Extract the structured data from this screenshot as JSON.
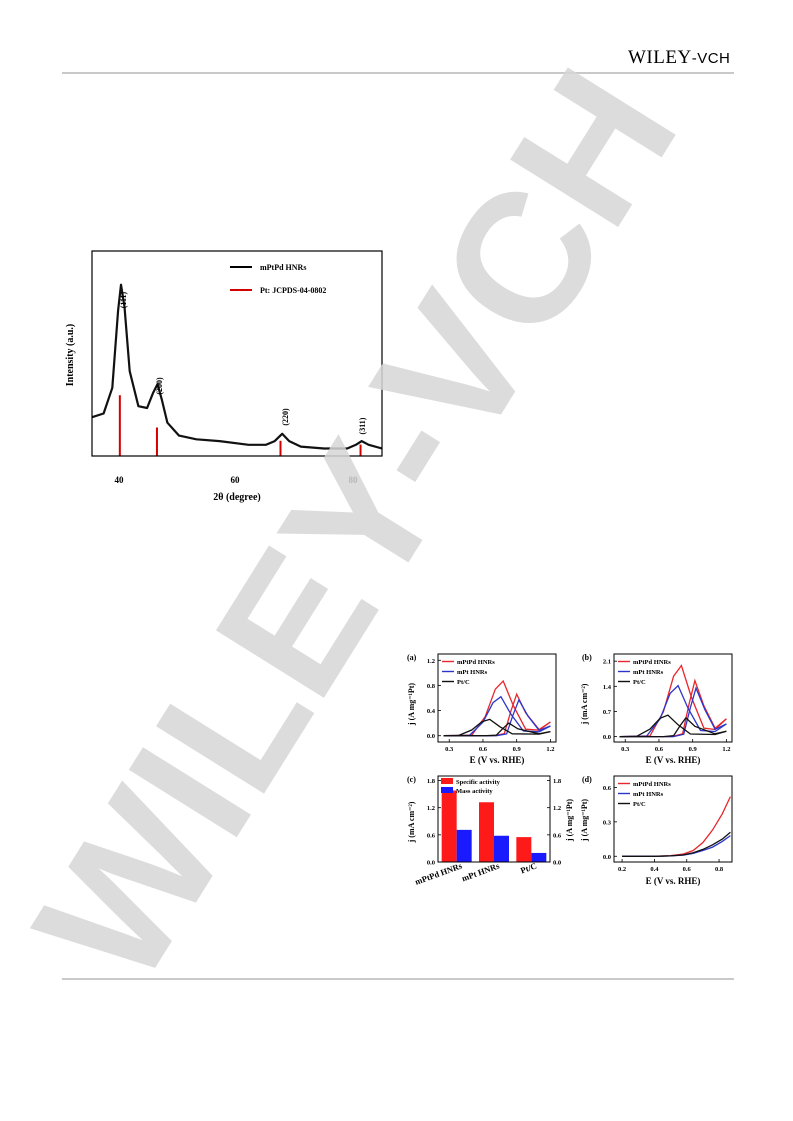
{
  "header": {
    "publisher_main": "WILEY",
    "publisher_suffix": "-VCH"
  },
  "watermark": {
    "text": "WILEY-VCH",
    "color": "#d6d6d6"
  },
  "colors": {
    "mPtPd": "#e8262b",
    "mPt": "#2b36c9",
    "PtC": "#111111",
    "specific": "#ff1a1a",
    "mass": "#1a1aff",
    "reference": "#d40000"
  },
  "xrd": {
    "xlabel": "2θ (degree)",
    "ylabel": "Intensity (a.u.)",
    "xticks": [
      "40",
      "60",
      "80"
    ],
    "legend": [
      "mPtPd HNRs",
      "Pt: JCPDS-04-0802"
    ],
    "peaks": [
      "(111)",
      "(200)",
      "(220)",
      "(311)"
    ]
  },
  "panel_a": {
    "label": "(a)",
    "ylabel": "j (A mg⁻¹Pt)",
    "xlabel": "E (V vs. RHE)",
    "yticks": [
      "0.0",
      "0.4",
      "0.8",
      "1.2"
    ],
    "xticks": [
      "0.3",
      "0.6",
      "0.9",
      "1.2"
    ],
    "legend": [
      "mPtPd HNRs",
      "mPt HNRs",
      "Pt/C"
    ]
  },
  "panel_b": {
    "label": "(b)",
    "ylabel": "j (mA cm⁻²)",
    "xlabel": "E (V vs. RHE)",
    "yticks": [
      "0.0",
      "0.7",
      "1.4",
      "2.1"
    ],
    "xticks": [
      "0.3",
      "0.6",
      "0.9",
      "1.2"
    ],
    "legend": [
      "mPtPd HNRs",
      "mPt HNRs",
      "Pt/C"
    ]
  },
  "panel_c": {
    "label": "(c)",
    "ylabel_left": "j (mA cm⁻²)",
    "ylabel_right": "j (A mg⁻¹Pt)",
    "yticks_left": [
      "0.0",
      "0.6",
      "1.2",
      "1.8"
    ],
    "yticks_right": [
      "0.0",
      "0.6",
      "1.2",
      "1.8"
    ],
    "categories": [
      "mPtPd HNRs",
      "mPt HNRs",
      "Pt/C"
    ],
    "legend": [
      "Specific activity",
      "Mass activity"
    ]
  },
  "panel_d": {
    "label": "(d)",
    "ylabel": "j (A mg⁻¹Pt)",
    "xlabel": "E (V vs. RHE)",
    "yticks": [
      "0.0",
      "0.3",
      "0.6"
    ],
    "xticks": [
      "0.2",
      "0.4",
      "0.6",
      "0.8"
    ],
    "legend": [
      "mPtPd HNRs",
      "mPt HNRs",
      "Pt/C"
    ]
  },
  "chart_data": [
    {
      "type": "line",
      "title": "",
      "xlabel": "2θ (degree)",
      "ylabel": "Intensity (a.u.)",
      "xlim": [
        35,
        85
      ],
      "series": [
        {
          "name": "mPtPd HNRs",
          "x": [
            35,
            37,
            38.5,
            39.5,
            40,
            40.6,
            41.5,
            43,
            44.5,
            45.5,
            46.3,
            47,
            48,
            50,
            53,
            57,
            62,
            65,
            66.5,
            67.8,
            69,
            71,
            75,
            79,
            80.5,
            81.5,
            82.7,
            85
          ],
          "y": [
            0.2,
            0.22,
            0.36,
            0.78,
            0.92,
            0.8,
            0.45,
            0.26,
            0.25,
            0.33,
            0.38,
            0.3,
            0.17,
            0.1,
            0.08,
            0.07,
            0.05,
            0.05,
            0.07,
            0.11,
            0.07,
            0.04,
            0.03,
            0.03,
            0.05,
            0.07,
            0.05,
            0.03
          ]
        },
        {
          "name": "Pt: JCPDS-04-0802",
          "x": [
            39.8,
            46.2,
            67.5,
            81.3
          ],
          "y": [
            0.32,
            0.15,
            0.08,
            0.06
          ]
        }
      ]
    },
    {
      "type": "line",
      "xlabel": "E (V vs. RHE)",
      "ylabel": "j (A mg⁻¹Pt)",
      "xlim": [
        0.2,
        1.25
      ],
      "ylim": [
        -0.1,
        1.3
      ],
      "series": [
        {
          "name": "mPtPd HNRs",
          "forward_peak": [
            0.78,
            0.87
          ],
          "backward_peak": [
            0.9,
            0.66
          ]
        },
        {
          "name": "mPt HNRs",
          "forward_peak": [
            0.76,
            0.62
          ],
          "backward_peak": [
            0.92,
            0.57
          ]
        },
        {
          "name": "Pt/C",
          "forward_peak": [
            0.66,
            0.26
          ],
          "backward_peak": [
            0.83,
            0.2
          ]
        }
      ]
    },
    {
      "type": "line",
      "xlabel": "E (V vs. RHE)",
      "ylabel": "j (mA cm⁻²)",
      "xlim": [
        0.2,
        1.25
      ],
      "ylim": [
        -0.15,
        2.3
      ],
      "series": [
        {
          "name": "mPtPd HNRs",
          "forward_peak": [
            0.8,
            1.98
          ],
          "backward_peak": [
            0.92,
            1.56
          ]
        },
        {
          "name": "mPt HNRs",
          "forward_peak": [
            0.77,
            1.42
          ],
          "backward_peak": [
            0.93,
            1.35
          ]
        },
        {
          "name": "Pt/C",
          "forward_peak": [
            0.68,
            0.6
          ],
          "backward_peak": [
            0.84,
            0.52
          ]
        }
      ]
    },
    {
      "type": "bar",
      "categories": [
        "mPtPd HNRs",
        "mPt HNRs",
        "Pt/C"
      ],
      "ylim": [
        0,
        1.9
      ],
      "series": [
        {
          "name": "Specific activity",
          "values": [
            1.58,
            1.32,
            0.55
          ]
        },
        {
          "name": "Mass activity",
          "values": [
            0.71,
            0.58,
            0.2
          ]
        }
      ]
    },
    {
      "type": "line",
      "xlabel": "E (V vs. RHE)",
      "ylabel": "j (A mg⁻¹Pt)",
      "xlim": [
        0.15,
        0.88
      ],
      "ylim": [
        -0.05,
        0.7
      ],
      "series": [
        {
          "name": "mPtPd HNRs",
          "x": [
            0.2,
            0.4,
            0.5,
            0.58,
            0.64,
            0.7,
            0.76,
            0.82,
            0.87
          ],
          "y": [
            0,
            0,
            0.005,
            0.02,
            0.05,
            0.12,
            0.23,
            0.37,
            0.52
          ]
        },
        {
          "name": "mPt HNRs",
          "x": [
            0.2,
            0.4,
            0.5,
            0.58,
            0.64,
            0.7,
            0.76,
            0.82,
            0.87
          ],
          "y": [
            0,
            0,
            0.003,
            0.01,
            0.025,
            0.05,
            0.08,
            0.13,
            0.18
          ]
        },
        {
          "name": "Pt/C",
          "x": [
            0.2,
            0.4,
            0.5,
            0.58,
            0.64,
            0.7,
            0.76,
            0.82,
            0.87
          ],
          "y": [
            0,
            0,
            0.003,
            0.012,
            0.03,
            0.06,
            0.1,
            0.15,
            0.21
          ]
        }
      ]
    }
  ]
}
